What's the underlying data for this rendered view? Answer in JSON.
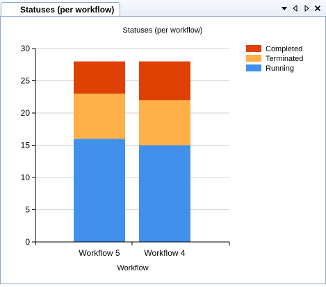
{
  "window": {
    "tab_title": "Statuses (per workflow)",
    "tab_controls": [
      "dropdown-icon",
      "scroll-left-icon",
      "scroll-right-icon",
      "close-icon"
    ]
  },
  "chart_data": {
    "type": "bar",
    "stacked": true,
    "title": "Statuses (per workflow)",
    "xlabel": "Workflow",
    "ylabel": "",
    "categories": [
      "Workflow 5",
      "Workflow 4"
    ],
    "ylim": [
      0,
      30
    ],
    "yticks": [
      0,
      5,
      10,
      15,
      20,
      25,
      30
    ],
    "grid": true,
    "legend_position": "top-right",
    "series": [
      {
        "name": "Running",
        "values": [
          16,
          15
        ],
        "color": "#4191ec"
      },
      {
        "name": "Terminated",
        "values": [
          7,
          7
        ],
        "color": "#ffb049"
      },
      {
        "name": "Completed",
        "values": [
          5,
          6
        ],
        "color": "#df4004"
      }
    ],
    "legend_order": [
      "Completed",
      "Terminated",
      "Running"
    ]
  }
}
